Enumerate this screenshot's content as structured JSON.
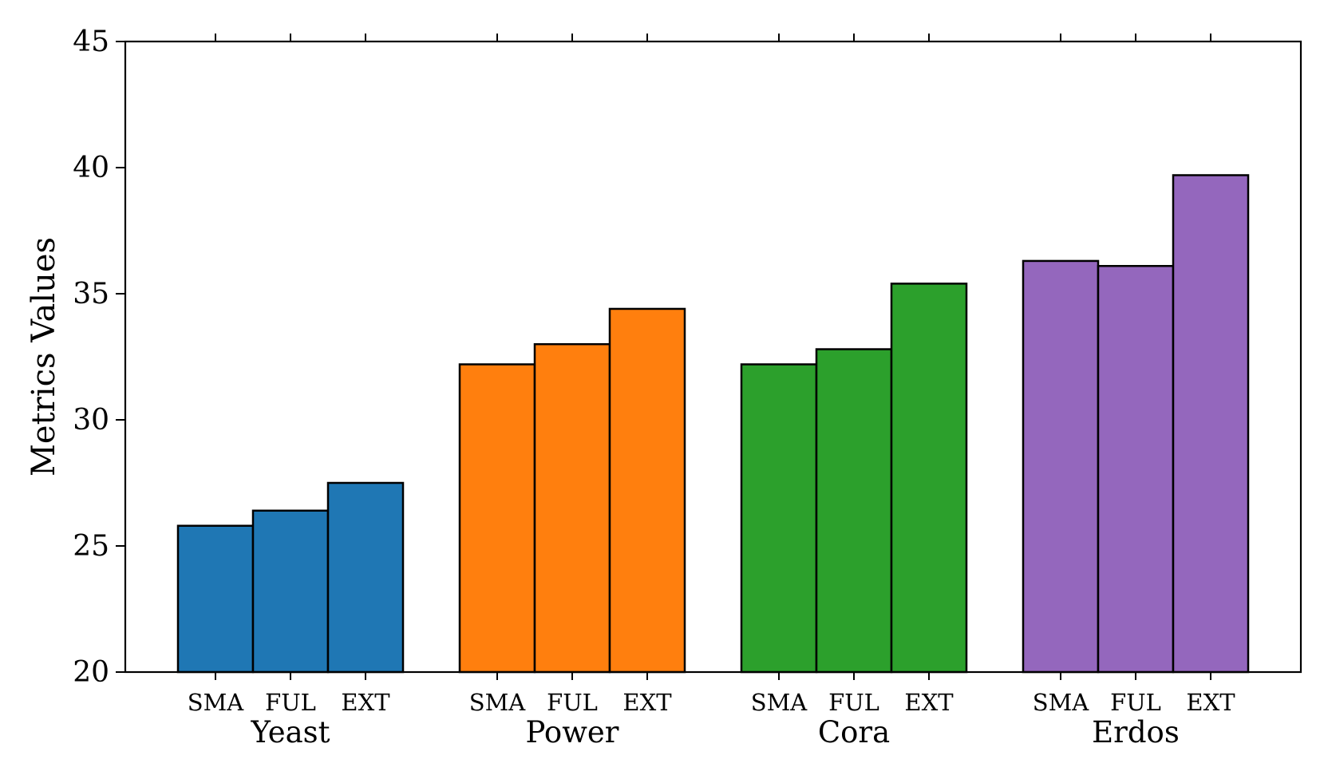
{
  "chart_data": {
    "type": "bar",
    "title": "",
    "xlabel": "",
    "ylabel": "Metrics Values",
    "ylim": [
      20,
      45
    ],
    "yticks": [
      "20",
      "25",
      "30",
      "35",
      "40",
      "45"
    ],
    "grid": false,
    "legend": "none",
    "groups": [
      {
        "name": "Yeast",
        "color": "#1f77b4",
        "categories": [
          "SMA",
          "FUL",
          "EXT"
        ],
        "values": [
          25.8,
          26.4,
          27.5
        ]
      },
      {
        "name": "Power",
        "color": "#ff7f0e",
        "categories": [
          "SMA",
          "FUL",
          "EXT"
        ],
        "values": [
          32.2,
          33.0,
          34.4
        ]
      },
      {
        "name": "Cora",
        "color": "#2ca02c",
        "categories": [
          "SMA",
          "FUL",
          "EXT"
        ],
        "values": [
          32.2,
          32.8,
          35.4
        ]
      },
      {
        "name": "Erdos",
        "color": "#9467bd",
        "categories": [
          "SMA",
          "FUL",
          "EXT"
        ],
        "values": [
          36.3,
          36.1,
          39.7
        ]
      }
    ]
  }
}
